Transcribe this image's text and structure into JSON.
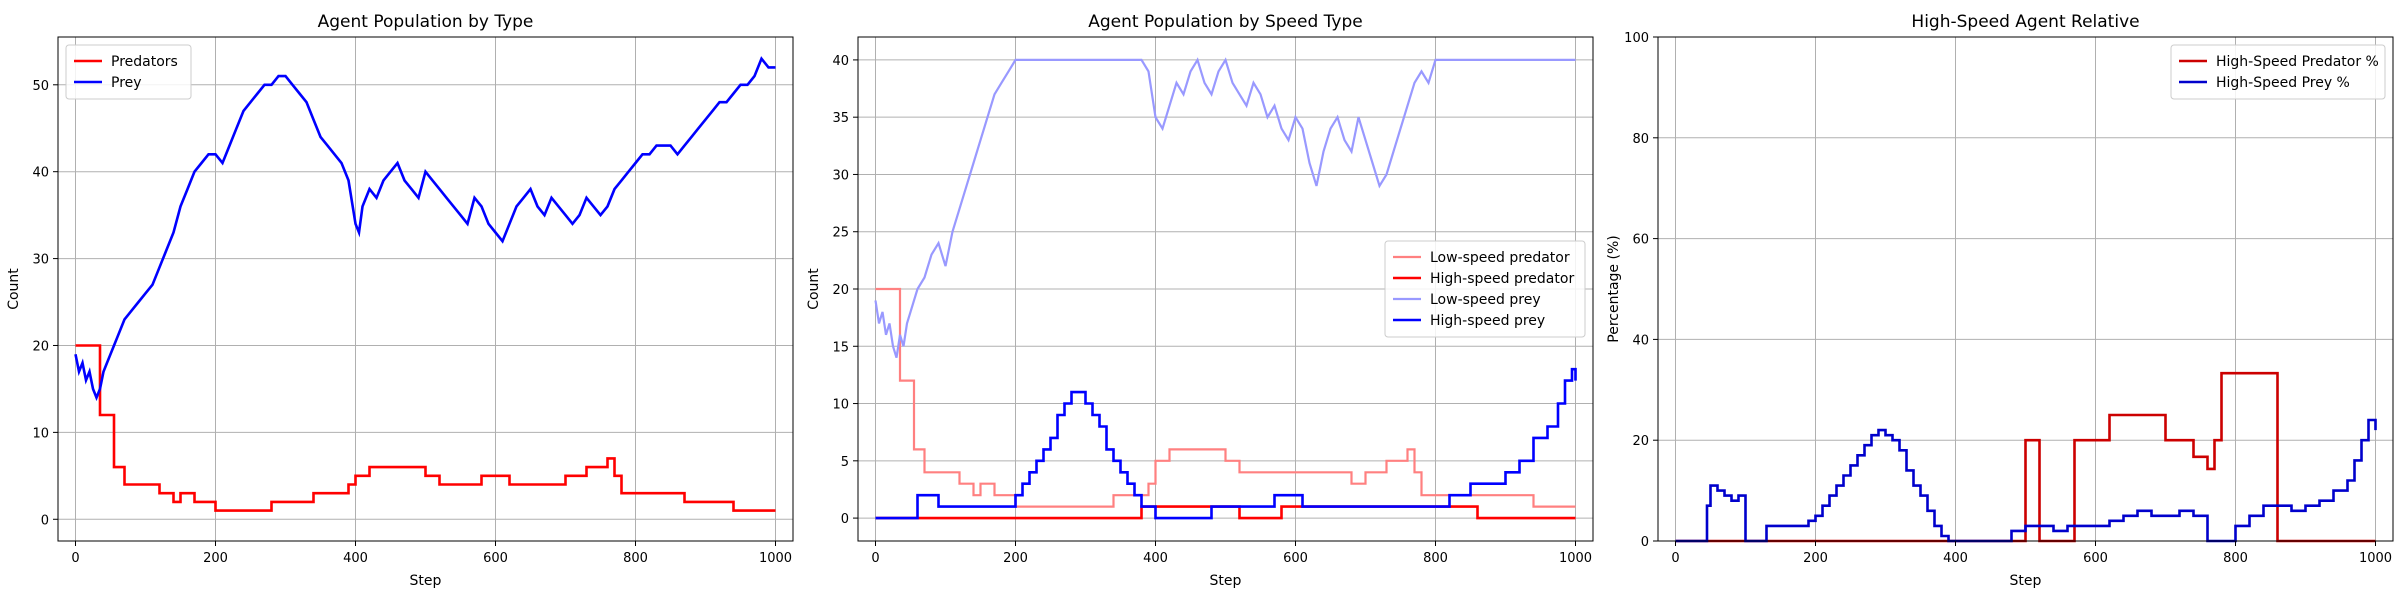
{
  "chart_data": [
    {
      "type": "line",
      "title": "Agent Population by Type",
      "xlabel": "Step",
      "ylabel": "Count",
      "xlim": [
        -25,
        1025
      ],
      "ylim": [
        -2.5,
        55.5
      ],
      "xticks": [
        0,
        200,
        400,
        600,
        800,
        1000
      ],
      "yticks": [
        0,
        10,
        20,
        30,
        40,
        50
      ],
      "grid": true,
      "legend_position": "top-left",
      "series": [
        {
          "name": "Predators",
          "color": "#ff0000",
          "width": 2.6,
          "step": true,
          "x": [
            0,
            30,
            35,
            50,
            55,
            70,
            110,
            120,
            140,
            150,
            170,
            200,
            280,
            340,
            390,
            400,
            420,
            500,
            520,
            580,
            620,
            680,
            700,
            730,
            760,
            770,
            780,
            850,
            870,
            940,
            1000
          ],
          "y": [
            20,
            20,
            12,
            12,
            6,
            4,
            4,
            3,
            2,
            3,
            2,
            1,
            2,
            3,
            4,
            5,
            6,
            5,
            4,
            5,
            4,
            4,
            5,
            6,
            7,
            5,
            3,
            3,
            2,
            1,
            1
          ]
        },
        {
          "name": "Prey",
          "color": "#0000ff",
          "width": 2.6,
          "step": false,
          "x": [
            0,
            5,
            10,
            15,
            20,
            25,
            30,
            35,
            40,
            45,
            50,
            55,
            60,
            70,
            80,
            90,
            100,
            110,
            120,
            130,
            140,
            150,
            160,
            170,
            180,
            190,
            200,
            210,
            220,
            230,
            240,
            250,
            260,
            270,
            280,
            290,
            300,
            310,
            320,
            330,
            340,
            350,
            360,
            370,
            380,
            390,
            400,
            405,
            410,
            420,
            430,
            440,
            450,
            460,
            470,
            480,
            490,
            500,
            510,
            520,
            530,
            540,
            550,
            560,
            570,
            580,
            590,
            600,
            610,
            620,
            630,
            640,
            650,
            660,
            670,
            680,
            690,
            700,
            710,
            720,
            730,
            740,
            750,
            760,
            770,
            780,
            790,
            800,
            810,
            820,
            830,
            840,
            850,
            860,
            870,
            880,
            890,
            900,
            910,
            920,
            930,
            940,
            950,
            960,
            970,
            980,
            990,
            1000
          ],
          "y": [
            19,
            17,
            18,
            16,
            17,
            15,
            14,
            15,
            17,
            18,
            19,
            20,
            21,
            23,
            24,
            25,
            26,
            27,
            29,
            31,
            33,
            36,
            38,
            40,
            41,
            42,
            42,
            41,
            43,
            45,
            47,
            48,
            49,
            50,
            50,
            51,
            51,
            50,
            49,
            48,
            46,
            44,
            43,
            42,
            41,
            39,
            34,
            33,
            36,
            38,
            37,
            39,
            40,
            41,
            39,
            38,
            37,
            40,
            39,
            38,
            37,
            36,
            35,
            34,
            37,
            36,
            34,
            33,
            32,
            34,
            36,
            37,
            38,
            36,
            35,
            37,
            36,
            35,
            34,
            35,
            37,
            36,
            35,
            36,
            38,
            39,
            40,
            41,
            42,
            42,
            43,
            43,
            43,
            42,
            43,
            44,
            45,
            46,
            47,
            48,
            48,
            49,
            50,
            50,
            51,
            53,
            52,
            52
          ]
        }
      ]
    },
    {
      "type": "line",
      "title": "Agent Population by Speed Type",
      "xlabel": "Step",
      "ylabel": "Count",
      "xlim": [
        -25,
        1025
      ],
      "ylim": [
        -2,
        42
      ],
      "xticks": [
        0,
        200,
        400,
        600,
        800,
        1000
      ],
      "yticks": [
        0,
        5,
        10,
        15,
        20,
        25,
        30,
        35,
        40
      ],
      "grid": true,
      "legend_position": "center-right",
      "series": [
        {
          "name": "Low-speed predator",
          "color": "#ff8080",
          "width": 2.2,
          "step": true,
          "x": [
            0,
            30,
            35,
            50,
            55,
            70,
            110,
            120,
            140,
            150,
            170,
            200,
            280,
            340,
            390,
            400,
            420,
            500,
            520,
            580,
            620,
            680,
            700,
            730,
            760,
            770,
            780,
            850,
            870,
            940,
            1000
          ],
          "y": [
            20,
            20,
            12,
            12,
            6,
            4,
            4,
            3,
            2,
            3,
            2,
            1,
            1,
            2,
            3,
            5,
            6,
            5,
            4,
            4,
            4,
            3,
            4,
            5,
            6,
            4,
            2,
            2,
            2,
            1,
            1
          ]
        },
        {
          "name": "High-speed predator",
          "color": "#ff0000",
          "width": 2.6,
          "step": true,
          "x": [
            0,
            280,
            380,
            480,
            520,
            580,
            620,
            680,
            700,
            760,
            780,
            860,
            1000
          ],
          "y": [
            0,
            0,
            1,
            1,
            0,
            1,
            1,
            1,
            1,
            1,
            1,
            0,
            0
          ]
        },
        {
          "name": "Low-speed prey",
          "color": "#9999ff",
          "width": 2.2,
          "step": false,
          "x": [
            0,
            5,
            10,
            15,
            20,
            25,
            30,
            35,
            40,
            45,
            50,
            60,
            70,
            80,
            90,
            100,
            110,
            120,
            130,
            140,
            150,
            160,
            170,
            180,
            190,
            200,
            250,
            300,
            350,
            380,
            390,
            400,
            410,
            420,
            430,
            440,
            450,
            460,
            470,
            480,
            490,
            500,
            510,
            520,
            530,
            540,
            550,
            560,
            570,
            580,
            590,
            600,
            610,
            620,
            630,
            640,
            650,
            660,
            670,
            680,
            690,
            700,
            710,
            720,
            730,
            740,
            750,
            760,
            770,
            780,
            790,
            800,
            820,
            850,
            900,
            950,
            1000
          ],
          "y": [
            19,
            17,
            18,
            16,
            17,
            15,
            14,
            16,
            15,
            17,
            18,
            20,
            21,
            23,
            24,
            22,
            25,
            27,
            29,
            31,
            33,
            35,
            37,
            38,
            39,
            40,
            40,
            40,
            40,
            40,
            39,
            35,
            34,
            36,
            38,
            37,
            39,
            40,
            38,
            37,
            39,
            40,
            38,
            37,
            36,
            38,
            37,
            35,
            36,
            34,
            33,
            35,
            34,
            31,
            29,
            32,
            34,
            35,
            33,
            32,
            35,
            33,
            31,
            29,
            30,
            32,
            34,
            36,
            38,
            39,
            38,
            40,
            40,
            40,
            40,
            40,
            40
          ]
        },
        {
          "name": "High-speed prey",
          "color": "#0000ff",
          "width": 2.6,
          "step": true,
          "x": [
            0,
            40,
            60,
            90,
            120,
            180,
            200,
            210,
            220,
            230,
            240,
            250,
            260,
            270,
            280,
            290,
            300,
            310,
            320,
            330,
            340,
            350,
            360,
            370,
            380,
            400,
            460,
            480,
            560,
            570,
            610,
            620,
            700,
            780,
            800,
            820,
            850,
            880,
            900,
            920,
            940,
            960,
            975,
            985,
            995,
            1000
          ],
          "y": [
            0,
            0,
            2,
            1,
            1,
            1,
            2,
            3,
            4,
            5,
            6,
            7,
            9,
            10,
            11,
            11,
            10,
            9,
            8,
            6,
            5,
            4,
            3,
            2,
            1,
            0,
            0,
            1,
            1,
            2,
            1,
            1,
            1,
            1,
            1,
            2,
            3,
            3,
            4,
            5,
            7,
            8,
            10,
            12,
            13,
            12
          ]
        }
      ]
    },
    {
      "type": "line",
      "title": "High-Speed Agent Relative",
      "xlabel": "Step",
      "ylabel": "Percentage (%)",
      "xlim": [
        -25,
        1025
      ],
      "ylim": [
        0,
        100
      ],
      "xticks": [
        0,
        200,
        400,
        600,
        800,
        1000
      ],
      "yticks": [
        0,
        20,
        40,
        60,
        80,
        100
      ],
      "grid": true,
      "legend_position": "top-right",
      "series": [
        {
          "name": "High-Speed Predator %",
          "color": "#cc0000",
          "width": 2.6,
          "step": true,
          "x": [
            0,
            460,
            490,
            500,
            515,
            520,
            560,
            570,
            610,
            620,
            680,
            700,
            740,
            760,
            770,
            780,
            850,
            860,
            1000
          ],
          "y": [
            0,
            0,
            0,
            20,
            20,
            0,
            0,
            20,
            20,
            25,
            25,
            20,
            16.7,
            14.3,
            20,
            33.3,
            33.3,
            0,
            0
          ]
        },
        {
          "name": "High-Speed Prey %",
          "color": "#0000cc",
          "width": 2.6,
          "step": true,
          "x": [
            0,
            40,
            45,
            50,
            60,
            70,
            80,
            90,
            100,
            130,
            180,
            190,
            200,
            210,
            220,
            230,
            240,
            250,
            260,
            270,
            280,
            290,
            300,
            310,
            320,
            330,
            340,
            350,
            360,
            370,
            380,
            390,
            400,
            450,
            480,
            500,
            520,
            540,
            560,
            600,
            620,
            640,
            660,
            680,
            700,
            720,
            740,
            760,
            790,
            800,
            820,
            840,
            860,
            880,
            900,
            920,
            940,
            960,
            970,
            980,
            990,
            1000
          ],
          "y": [
            0,
            0,
            7,
            11,
            10,
            9,
            8,
            9,
            0,
            3,
            3,
            4,
            5,
            7,
            9,
            11,
            13,
            15,
            17,
            19,
            21,
            22,
            21,
            20,
            18,
            14,
            11,
            9,
            6,
            3,
            1,
            0,
            0,
            0,
            2,
            3,
            3,
            2,
            3,
            3,
            4,
            5,
            6,
            5,
            5,
            6,
            5,
            0,
            0,
            3,
            5,
            7,
            7,
            6,
            7,
            8,
            10,
            12,
            16,
            20,
            24,
            22
          ]
        }
      ]
    }
  ]
}
